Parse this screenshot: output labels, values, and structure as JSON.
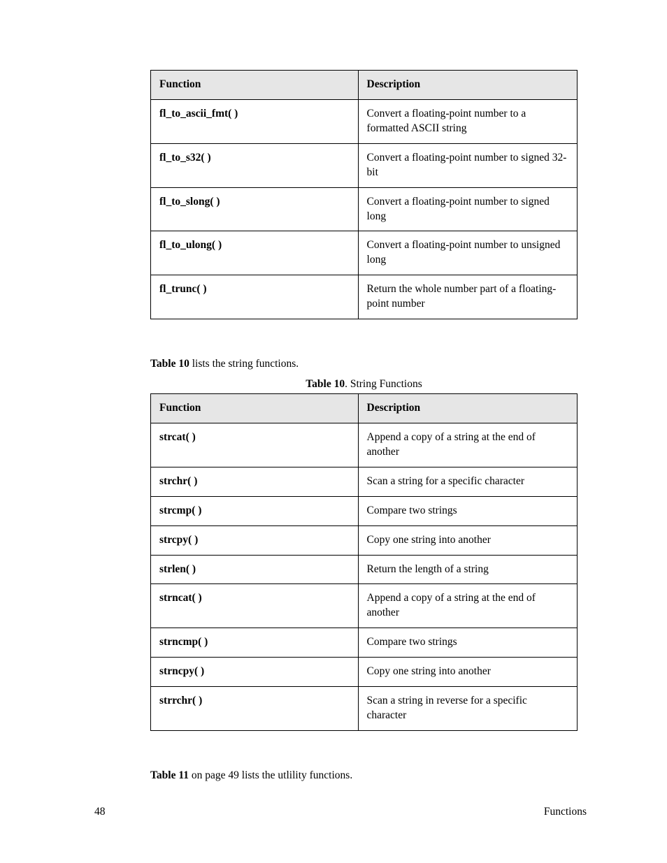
{
  "table1": {
    "columns": [
      "Function",
      "Description"
    ],
    "header_bg": "#e6e6e6",
    "border_color": "#000000",
    "rows": [
      {
        "fn": "fl_to_ascii_fmt( )",
        "desc": "Convert a floating-point number to a formatted ASCII string"
      },
      {
        "fn": "fl_to_s32( )",
        "desc": "Convert a floating-point number to signed 32-bit"
      },
      {
        "fn": "fl_to_slong( )",
        "desc": "Convert a floating-point number to signed long"
      },
      {
        "fn": "fl_to_ulong( )",
        "desc": "Convert a floating-point number to unsigned long"
      },
      {
        "fn": "fl_trunc( )",
        "desc": "Return the whole number part of a floating-point number"
      }
    ]
  },
  "intro1": {
    "prefix": "Table 10",
    "rest": " lists the string functions."
  },
  "caption1": {
    "prefix": "Table 10",
    "rest": ". String Functions"
  },
  "table2": {
    "columns": [
      "Function",
      "Description"
    ],
    "header_bg": "#e6e6e6",
    "border_color": "#000000",
    "rows": [
      {
        "fn": "strcat( )",
        "desc": "Append a copy of a string at the end of another"
      },
      {
        "fn": "strchr( )",
        "desc": "Scan a string for a specific character"
      },
      {
        "fn": "strcmp( )",
        "desc": "Compare two strings"
      },
      {
        "fn": "strcpy( )",
        "desc": "Copy one string into another"
      },
      {
        "fn": "strlen( )",
        "desc": "Return the length of a string"
      },
      {
        "fn": "strncat( )",
        "desc": "Append a copy of a string at the end of another"
      },
      {
        "fn": "strncmp( )",
        "desc": "Compare two strings"
      },
      {
        "fn": "strncpy( )",
        "desc": "Copy one string into another"
      },
      {
        "fn": "strrchr( )",
        "desc": "Scan a string in reverse for a specific character"
      }
    ]
  },
  "intro2": {
    "prefix": "Table 11",
    "rest": " on page 49 lists the utlility functions."
  },
  "footer": {
    "page": "48",
    "section": "Functions"
  }
}
